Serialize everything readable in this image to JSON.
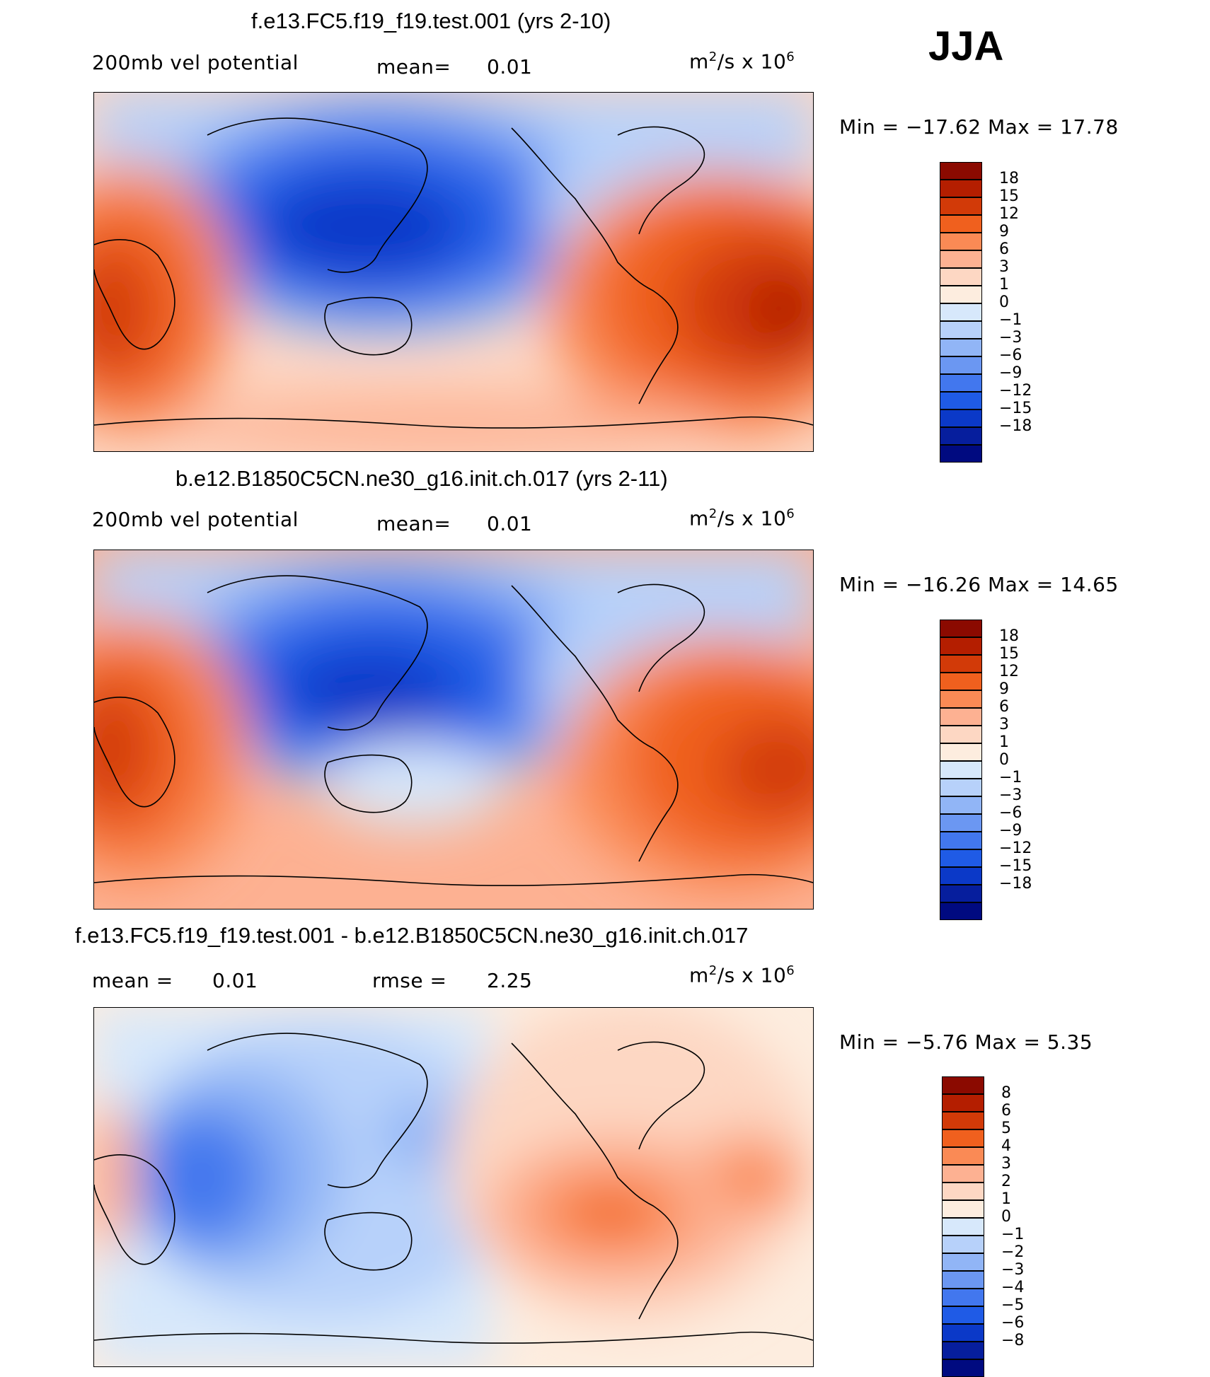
{
  "season": "JJA",
  "panels": [
    {
      "title": "f.e13.FC5.f19_f19.test.001 (yrs 2-10)",
      "left_label": "200mb  vel  potential",
      "mean_label": "mean=",
      "mean_value": "0.01",
      "units_base": "m",
      "units_sq": "2",
      "units_rest": "/s  x  10",
      "units_exp": "6",
      "minmax": "Min  =  −17.62  Max  =    17.78",
      "colorbar": {
        "colors": [
          "#8b0a00",
          "#b41e00",
          "#d23a08",
          "#f0601e",
          "#fa8a55",
          "#fdb192",
          "#fdd7c3",
          "#fdeddf",
          "#d7e8fb",
          "#b7d1fa",
          "#91b5f6",
          "#6b97f2",
          "#4277ee",
          "#1f5be6",
          "#0b39c8",
          "#061e9d",
          "#000a80"
        ],
        "labels": [
          "18",
          "15",
          "12",
          "9",
          "6",
          "3",
          "1",
          "0",
          "−1",
          "−3",
          "−6",
          "−9",
          "−12",
          "−15",
          "−18"
        ]
      }
    },
    {
      "title": "b.e12.B1850C5CN.ne30_g16.init.ch.017 (yrs 2-11)",
      "left_label": "200mb  vel  potential",
      "mean_label": "mean=",
      "mean_value": "0.01",
      "units_base": "m",
      "units_sq": "2",
      "units_rest": "/s  x  10",
      "units_exp": "6",
      "minmax": "Min  =  −16.26  Max  =    14.65",
      "colorbar": {
        "colors": [
          "#8b0a00",
          "#b41e00",
          "#d23a08",
          "#f0601e",
          "#fa8a55",
          "#fdb192",
          "#fdd7c3",
          "#fdeddf",
          "#d7e8fb",
          "#b7d1fa",
          "#91b5f6",
          "#6b97f2",
          "#4277ee",
          "#1f5be6",
          "#0b39c8",
          "#061e9d",
          "#000a80"
        ],
        "labels": [
          "18",
          "15",
          "12",
          "9",
          "6",
          "3",
          "1",
          "0",
          "−1",
          "−3",
          "−6",
          "−9",
          "−12",
          "−15",
          "−18"
        ]
      }
    },
    {
      "title": "f.e13.FC5.f19_f19.test.001 - b.e12.B1850C5CN.ne30_g16.init.ch.017",
      "left_label": "mean  =",
      "left_value": "0.01",
      "mean_label": "rmse  =",
      "mean_value": "2.25",
      "units_base": "m",
      "units_sq": "2",
      "units_rest": "/s  x  10",
      "units_exp": "6",
      "minmax": "Min  =   −5.76  Max  =     5.35",
      "colorbar": {
        "colors": [
          "#8b0a00",
          "#b41e00",
          "#d23a08",
          "#f0601e",
          "#fa8a55",
          "#fdb192",
          "#fdd7c3",
          "#fdeddf",
          "#d7e8fb",
          "#b7d1fa",
          "#91b5f6",
          "#6b97f2",
          "#4277ee",
          "#1f5be6",
          "#0b39c8",
          "#061e9d",
          "#000a80"
        ],
        "labels": [
          "8",
          "6",
          "5",
          "4",
          "3",
          "2",
          "1",
          "0",
          "−1",
          "−2",
          "−3",
          "−4",
          "−5",
          "−6",
          "−8"
        ]
      }
    }
  ]
}
